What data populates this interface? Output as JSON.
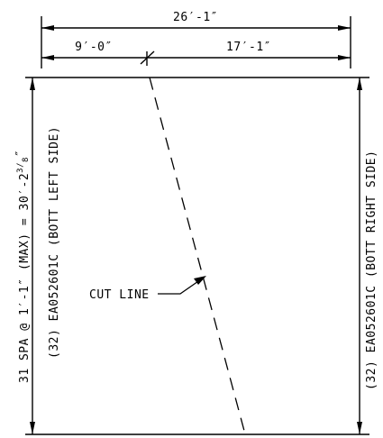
{
  "dimensions": {
    "overall_width": "26′-1″",
    "left_segment": "9′-0″",
    "right_segment": "17′-1″"
  },
  "left_labels": {
    "spacing_prefix": "31 SPA @ 1′-1″ (MAX) = 30′-2",
    "spacing_frac_num": "3",
    "spacing_frac_den": "8",
    "spacing_suffix": "″",
    "bar_mark": "(32) EA052601C (BOTT LEFT SIDE)"
  },
  "right_labels": {
    "bar_mark": "(32) EA052601C (BOTT RIGHT SIDE)"
  },
  "callout": {
    "label": "CUT LINE"
  }
}
